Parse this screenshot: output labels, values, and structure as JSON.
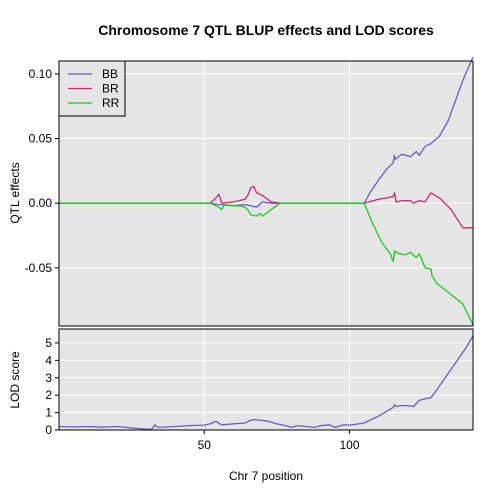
{
  "chart_data": [
    {
      "type": "line",
      "title": "Chromosome 7 QTL BLUP effects and LOD scores",
      "xlabel": "",
      "ylabel": "QTL effects",
      "xlim": [
        0,
        142.5
      ],
      "ylim": [
        -0.095,
        0.11
      ],
      "x_ticks": [
        50,
        100
      ],
      "y_ticks": [
        -0.05,
        0.0,
        0.05,
        0.1
      ],
      "y_tick_labels": [
        "-0.05",
        "0.00",
        "0.05",
        "0.10"
      ],
      "background": "#e5e5e5",
      "grid": true,
      "legend": {
        "position": "top-left"
      },
      "series": [
        {
          "name": "BB",
          "color": "#6a5acd",
          "points": [
            [
              0,
              0
            ],
            [
              52,
              0
            ],
            [
              55,
              -0.001
            ],
            [
              60,
              -0.002
            ],
            [
              64,
              -0.001
            ],
            [
              66,
              -0.002
            ],
            [
              68,
              -0.003
            ],
            [
              70,
              0.001
            ],
            [
              73,
              0
            ],
            [
              76,
              0
            ],
            [
              105,
              0
            ],
            [
              107,
              0.008
            ],
            [
              110,
              0.018
            ],
            [
              113,
              0.027
            ],
            [
              115,
              0.031
            ],
            [
              115.4,
              0.037
            ],
            [
              115.8,
              0.034
            ],
            [
              118,
              0.038
            ],
            [
              121,
              0.036
            ],
            [
              123,
              0.04
            ],
            [
              124,
              0.037
            ],
            [
              126,
              0.044
            ],
            [
              128,
              0.046
            ],
            [
              131,
              0.052
            ],
            [
              134,
              0.064
            ],
            [
              139,
              0.095
            ],
            [
              142.5,
              0.113
            ]
          ]
        },
        {
          "name": "BR",
          "color": "#d4237a",
          "points": [
            [
              0,
              0
            ],
            [
              52,
              0
            ],
            [
              54,
              0.004
            ],
            [
              55,
              0.007
            ],
            [
              56,
              0
            ],
            [
              60,
              0.001
            ],
            [
              62,
              0.002
            ],
            [
              64,
              0.003
            ],
            [
              65,
              0.006
            ],
            [
              66,
              0.012
            ],
            [
              67,
              0.013
            ],
            [
              68,
              0.008
            ],
            [
              70,
              0.006
            ],
            [
              73,
              0.001
            ],
            [
              76,
              0
            ],
            [
              105,
              0
            ],
            [
              110,
              0.003
            ],
            [
              115,
              0.005
            ],
            [
              115.5,
              0.008
            ],
            [
              116,
              0.001
            ],
            [
              118,
              0.002
            ],
            [
              121,
              0.002
            ],
            [
              122,
              0
            ],
            [
              124,
              0.002
            ],
            [
              126,
              0.001
            ],
            [
              128,
              0.008
            ],
            [
              131,
              0.004
            ],
            [
              135,
              -0.005
            ],
            [
              139,
              -0.019
            ],
            [
              142.5,
              -0.019
            ]
          ]
        },
        {
          "name": "RR",
          "color": "#1acc1a",
          "points": [
            [
              0,
              0
            ],
            [
              52,
              0
            ],
            [
              55,
              -0.003
            ],
            [
              56,
              -0.005
            ],
            [
              57,
              -0.001
            ],
            [
              60,
              -0.002
            ],
            [
              62,
              -0.002
            ],
            [
              64,
              -0.003
            ],
            [
              65,
              -0.005
            ],
            [
              66,
              -0.009
            ],
            [
              68,
              -0.01
            ],
            [
              69,
              -0.008
            ],
            [
              70,
              -0.01
            ],
            [
              73,
              -0.005
            ],
            [
              76,
              0
            ],
            [
              105,
              0
            ],
            [
              108,
              -0.016
            ],
            [
              111,
              -0.03
            ],
            [
              114,
              -0.039
            ],
            [
              115,
              -0.045
            ],
            [
              115.5,
              -0.037
            ],
            [
              117,
              -0.039
            ],
            [
              119,
              -0.04
            ],
            [
              121,
              -0.038
            ],
            [
              123,
              -0.042
            ],
            [
              124,
              -0.039
            ],
            [
              126,
              -0.05
            ],
            [
              128,
              -0.051
            ],
            [
              128.5,
              -0.057
            ],
            [
              129,
              -0.058
            ],
            [
              130,
              -0.062
            ],
            [
              134,
              -0.069
            ],
            [
              139,
              -0.078
            ],
            [
              142.5,
              -0.094
            ]
          ]
        }
      ]
    },
    {
      "type": "line",
      "title": "",
      "xlabel": "Chr 7 position",
      "ylabel": "LOD score",
      "xlim": [
        0,
        142.5
      ],
      "ylim": [
        0,
        5.8
      ],
      "x_ticks": [
        50,
        100
      ],
      "x_tick_labels": [
        "50",
        "100"
      ],
      "y_ticks": [
        0,
        1,
        2,
        3,
        4,
        5
      ],
      "y_tick_labels": [
        "0",
        "1",
        "2",
        "3",
        "4",
        "5"
      ],
      "background": "#e5e5e5",
      "grid": true,
      "series": [
        {
          "name": "",
          "color": "#6a5acd",
          "points": [
            [
              0,
              0.2
            ],
            [
              5,
              0.18
            ],
            [
              10,
              0.2
            ],
            [
              15,
              0.16
            ],
            [
              20,
              0.2
            ],
            [
              25,
              0.12
            ],
            [
              30,
              0.05
            ],
            [
              32,
              0.05
            ],
            [
              33,
              0.3
            ],
            [
              34,
              0.15
            ],
            [
              40,
              0.2
            ],
            [
              45,
              0.25
            ],
            [
              50,
              0.28
            ],
            [
              52,
              0.35
            ],
            [
              54,
              0.5
            ],
            [
              56,
              0.3
            ],
            [
              60,
              0.35
            ],
            [
              64,
              0.4
            ],
            [
              66,
              0.55
            ],
            [
              67,
              0.6
            ],
            [
              70,
              0.55
            ],
            [
              72,
              0.5
            ],
            [
              75,
              0.35
            ],
            [
              78,
              0.25
            ],
            [
              80,
              0.15
            ],
            [
              82,
              0.25
            ],
            [
              85,
              0.2
            ],
            [
              88,
              0.15
            ],
            [
              90,
              0.25
            ],
            [
              93,
              0.3
            ],
            [
              95,
              0.15
            ],
            [
              98,
              0.3
            ],
            [
              100,
              0.28
            ],
            [
              103,
              0.35
            ],
            [
              105,
              0.4
            ],
            [
              110,
              0.8
            ],
            [
              115,
              1.3
            ],
            [
              115.5,
              1.45
            ],
            [
              116,
              1.35
            ],
            [
              118,
              1.4
            ],
            [
              120,
              1.4
            ],
            [
              122,
              1.35
            ],
            [
              124,
              1.7
            ],
            [
              126,
              1.8
            ],
            [
              128,
              1.85
            ],
            [
              130,
              2.3
            ],
            [
              135,
              3.5
            ],
            [
              140,
              4.7
            ],
            [
              142.5,
              5.4
            ]
          ]
        }
      ]
    }
  ]
}
